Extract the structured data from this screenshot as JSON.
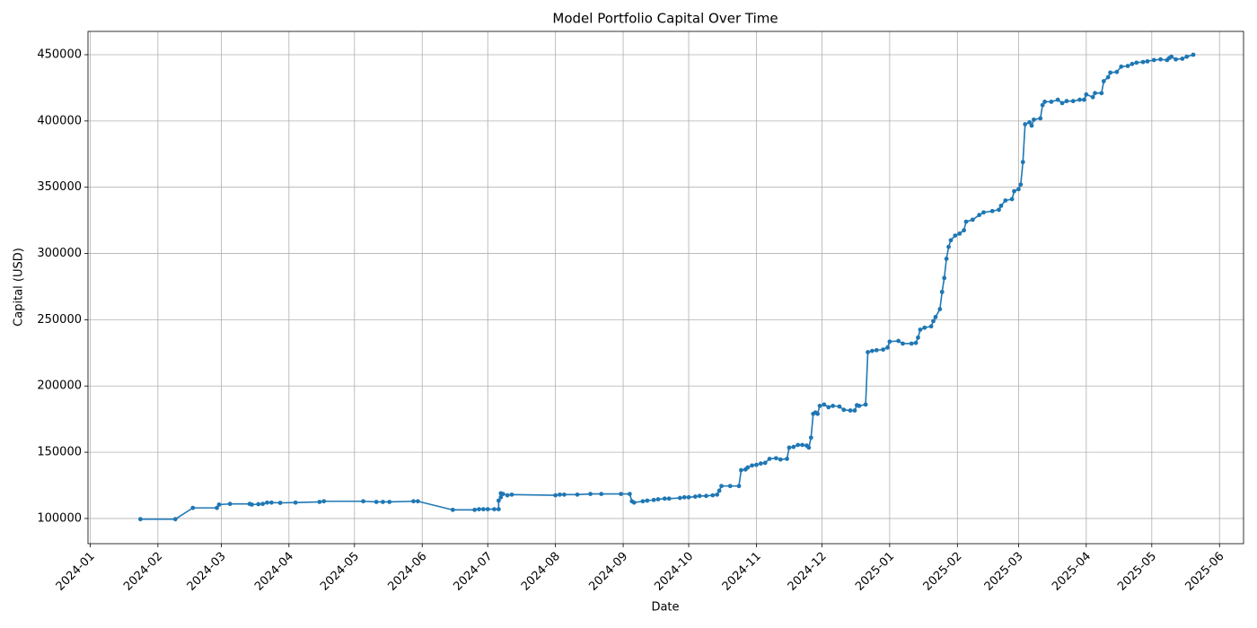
{
  "chart_data": {
    "type": "line",
    "title": "Model Portfolio Capital Over Time",
    "xlabel": "Date",
    "ylabel": "Capital (USD)",
    "color": "#1f77b4",
    "grid": true,
    "x": [
      "2024-01-24",
      "2024-02-09",
      "2024-02-17",
      "2024-02-28",
      "2024-02-29",
      "2024-03-05",
      "2024-03-14",
      "2024-03-15",
      "2024-03-18",
      "2024-03-20",
      "2024-03-22",
      "2024-03-24",
      "2024-03-28",
      "2024-04-04",
      "2024-04-15",
      "2024-04-17",
      "2024-05-05",
      "2024-05-11",
      "2024-05-14",
      "2024-05-17",
      "2024-05-28",
      "2024-05-30",
      "2024-06-15",
      "2024-06-25",
      "2024-06-27",
      "2024-06-29",
      "2024-07-01",
      "2024-07-04",
      "2024-07-06",
      "2024-07-06",
      "2024-07-07",
      "2024-07-07",
      "2024-07-08",
      "2024-07-10",
      "2024-07-12",
      "2024-08-01",
      "2024-08-03",
      "2024-08-05",
      "2024-08-11",
      "2024-08-17",
      "2024-08-22",
      "2024-08-31",
      "2024-09-04",
      "2024-09-05",
      "2024-09-06",
      "2024-09-10",
      "2024-09-12",
      "2024-09-15",
      "2024-09-17",
      "2024-09-20",
      "2024-09-22",
      "2024-09-27",
      "2024-09-29",
      "2024-10-01",
      "2024-10-04",
      "2024-10-06",
      "2024-10-09",
      "2024-10-12",
      "2024-10-14",
      "2024-10-15",
      "2024-10-16",
      "2024-10-20",
      "2024-10-24",
      "2024-10-25",
      "2024-10-27",
      "2024-10-28",
      "2024-10-30",
      "2024-11-01",
      "2024-11-03",
      "2024-11-05",
      "2024-11-07",
      "2024-11-10",
      "2024-11-12",
      "2024-11-15",
      "2024-11-16",
      "2024-11-18",
      "2024-11-20",
      "2024-11-22",
      "2024-11-24",
      "2024-11-25",
      "2024-11-26",
      "2024-11-27",
      "2024-11-28",
      "2024-11-29",
      "2024-11-30",
      "2024-12-02",
      "2024-12-04",
      "2024-12-06",
      "2024-12-09",
      "2024-12-11",
      "2024-12-14",
      "2024-12-16",
      "2024-12-17",
      "2024-12-18",
      "2024-12-21",
      "2024-12-22",
      "2024-12-24",
      "2024-12-26",
      "2024-12-29",
      "2024-12-31",
      "2025-01-01",
      "2025-01-05",
      "2025-01-07",
      "2025-01-11",
      "2025-01-13",
      "2025-01-14",
      "2025-01-15",
      "2025-01-17",
      "2025-01-20",
      "2025-01-21",
      "2025-01-22",
      "2025-01-24",
      "2025-01-25",
      "2025-01-26",
      "2025-01-27",
      "2025-01-28",
      "2025-01-29",
      "2025-01-31",
      "2025-02-02",
      "2025-02-04",
      "2025-02-05",
      "2025-02-08",
      "2025-02-11",
      "2025-02-13",
      "2025-02-17",
      "2025-02-20",
      "2025-02-21",
      "2025-02-23",
      "2025-02-26",
      "2025-02-27",
      "2025-03-01",
      "2025-03-02",
      "2025-03-03",
      "2025-03-04",
      "2025-03-06",
      "2025-03-07",
      "2025-03-08",
      "2025-03-11",
      "2025-03-12",
      "2025-03-13",
      "2025-03-16",
      "2025-03-19",
      "2025-03-21",
      "2025-03-23",
      "2025-03-26",
      "2025-03-29",
      "2025-03-31",
      "2025-04-01",
      "2025-04-04",
      "2025-04-05",
      "2025-04-08",
      "2025-04-09",
      "2025-04-11",
      "2025-04-12",
      "2025-04-15",
      "2025-04-17",
      "2025-04-20",
      "2025-04-22",
      "2025-04-24",
      "2025-04-27",
      "2025-04-29",
      "2025-05-02",
      "2025-05-05",
      "2025-05-08",
      "2025-05-09",
      "2025-05-10",
      "2025-05-12",
      "2025-05-15",
      "2025-05-17",
      "2025-05-20"
    ],
    "values": [
      99500,
      99500,
      108000,
      108000,
      110500,
      111000,
      111000,
      110500,
      110800,
      111000,
      112000,
      112000,
      111800,
      112000,
      112500,
      113000,
      113000,
      112500,
      112500,
      112500,
      113000,
      113000,
      106500,
      106500,
      107000,
      107000,
      107000,
      107000,
      107000,
      113500,
      116000,
      119000,
      118500,
      117500,
      118000,
      117500,
      118000,
      118000,
      118000,
      118500,
      118500,
      118500,
      118500,
      113000,
      112000,
      113000,
      113500,
      114000,
      114500,
      115000,
      115000,
      115500,
      116000,
      116000,
      116500,
      117000,
      117000,
      117500,
      118000,
      121000,
      124500,
      124500,
      124500,
      136500,
      137000,
      138500,
      140000,
      140500,
      141500,
      142000,
      145000,
      145500,
      144500,
      145000,
      153500,
      154000,
      155500,
      155500,
      155000,
      153500,
      161000,
      179000,
      180000,
      179000,
      185000,
      186000,
      184000,
      185000,
      184500,
      182000,
      181500,
      181500,
      185500,
      185000,
      186000,
      225500,
      226500,
      227000,
      227500,
      229000,
      233500,
      234000,
      232000,
      232000,
      232500,
      236500,
      242500,
      244000,
      245000,
      249000,
      252000,
      258000,
      271000,
      281500,
      296000,
      305000,
      310000,
      313500,
      315000,
      317500,
      324000,
      325500,
      329000,
      331000,
      332000,
      333000,
      336000,
      340000,
      341000,
      347000,
      348500,
      352000,
      369000,
      397500,
      399000,
      396500,
      401000,
      402000,
      412000,
      414500,
      414500,
      416000,
      413500,
      415000,
      415000,
      416000,
      416000,
      420000,
      418000,
      421000,
      421000,
      430000,
      433000,
      436500,
      437000,
      441000,
      441500,
      443000,
      444000,
      444500,
      445000,
      446000,
      446500,
      446000,
      447500,
      448500,
      446500,
      447000,
      448500,
      450000
    ],
    "xlim": [
      "2023-12-31",
      "2025-06-12"
    ],
    "xticks": [
      "2024-01",
      "2024-02",
      "2024-03",
      "2024-04",
      "2024-05",
      "2024-06",
      "2024-07",
      "2024-08",
      "2024-09",
      "2024-10",
      "2024-11",
      "2024-12",
      "2025-01",
      "2025-02",
      "2025-03",
      "2025-04",
      "2025-05",
      "2025-06"
    ],
    "ylim": [
      81000,
      467600
    ],
    "yticks": [
      100000,
      150000,
      200000,
      250000,
      300000,
      350000,
      400000,
      450000
    ]
  }
}
